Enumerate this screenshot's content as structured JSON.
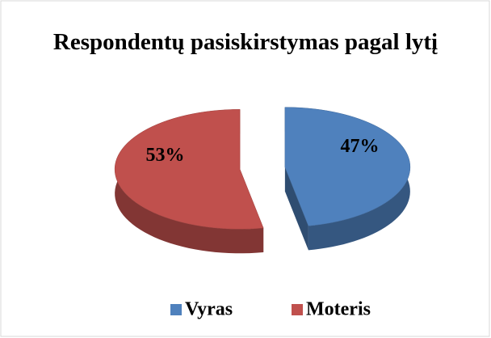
{
  "chart_data": {
    "type": "pie",
    "title": "Respondentų pasiskirstymas pagal lytį",
    "categories": [
      "Vyras",
      "Moteris"
    ],
    "values": [
      47,
      53
    ],
    "value_labels": [
      "47%",
      "53%"
    ],
    "colors": [
      "#4f81bd",
      "#c0504d"
    ],
    "legend": "bottom"
  }
}
